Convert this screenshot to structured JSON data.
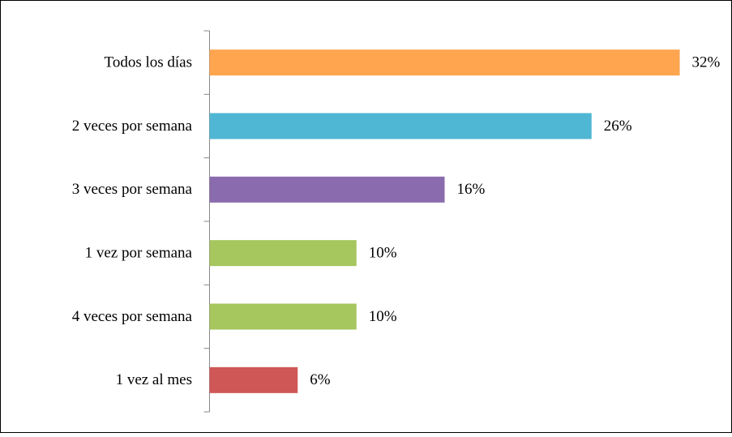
{
  "chart_data": {
    "type": "bar",
    "orientation": "horizontal",
    "categories": [
      "Todos los días",
      "2 veces por semana",
      "3 veces por semana",
      "1 vez por semana",
      "4 veces por semana",
      "1 vez al mes"
    ],
    "values": [
      32,
      26,
      16,
      10,
      10,
      6
    ],
    "value_labels": [
      "32%",
      "26%",
      "16%",
      "10%",
      "10%",
      "6%"
    ],
    "colors": [
      "#ffa54f",
      "#4fb7d3",
      "#8a6bad",
      "#a6c65e",
      "#a6c65e",
      "#cf5756"
    ]
  }
}
